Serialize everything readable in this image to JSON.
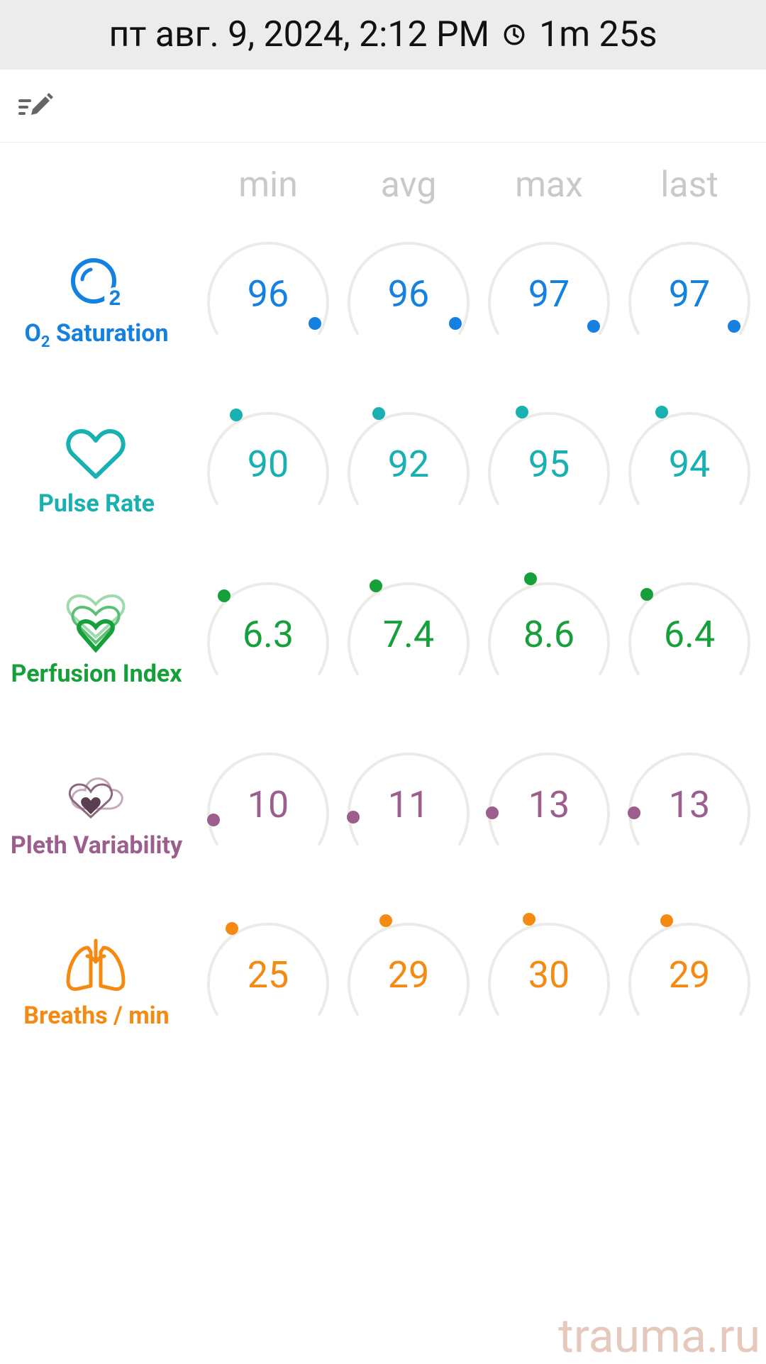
{
  "header": {
    "datetime": "пт авг. 9, 2024, 2:12 PM",
    "duration": "1m 25s",
    "clock_icon": "clock-icon"
  },
  "toolbar": {
    "edit_icon": "edit-list-icon"
  },
  "columns": [
    "min",
    "avg",
    "max",
    "last"
  ],
  "colors": {
    "track": "#ecebe7",
    "header_bg": "#ececec"
  },
  "metrics": [
    {
      "key": "o2",
      "label_main": "O",
      "label_sub": "2",
      "label_rest": " Saturation",
      "color": "#1480e0",
      "icon": "o2-bubble-icon",
      "values": [
        "96",
        "96",
        "97",
        "97"
      ]
    },
    {
      "key": "pulse",
      "label": "Pulse Rate",
      "color": "#18b0b0",
      "icon": "heart-icon",
      "values": [
        "90",
        "92",
        "95",
        "94"
      ]
    },
    {
      "key": "perfusion",
      "label": "Perfusion Index",
      "color": "#16a03a",
      "icon": "layered-hearts-icon",
      "values": [
        "6.3",
        "7.4",
        "8.6",
        "6.4"
      ]
    },
    {
      "key": "pleth",
      "label": "Pleth Variability",
      "color": "#9c5e8c",
      "icon": "heart-cloud-icon",
      "values": [
        "10",
        "11",
        "13",
        "13"
      ]
    },
    {
      "key": "breaths",
      "label": "Breaths / min",
      "color": "#f58a12",
      "icon": "lungs-icon",
      "values": [
        "25",
        "29",
        "30",
        "29"
      ]
    }
  ],
  "watermark": "trauma.ru"
}
